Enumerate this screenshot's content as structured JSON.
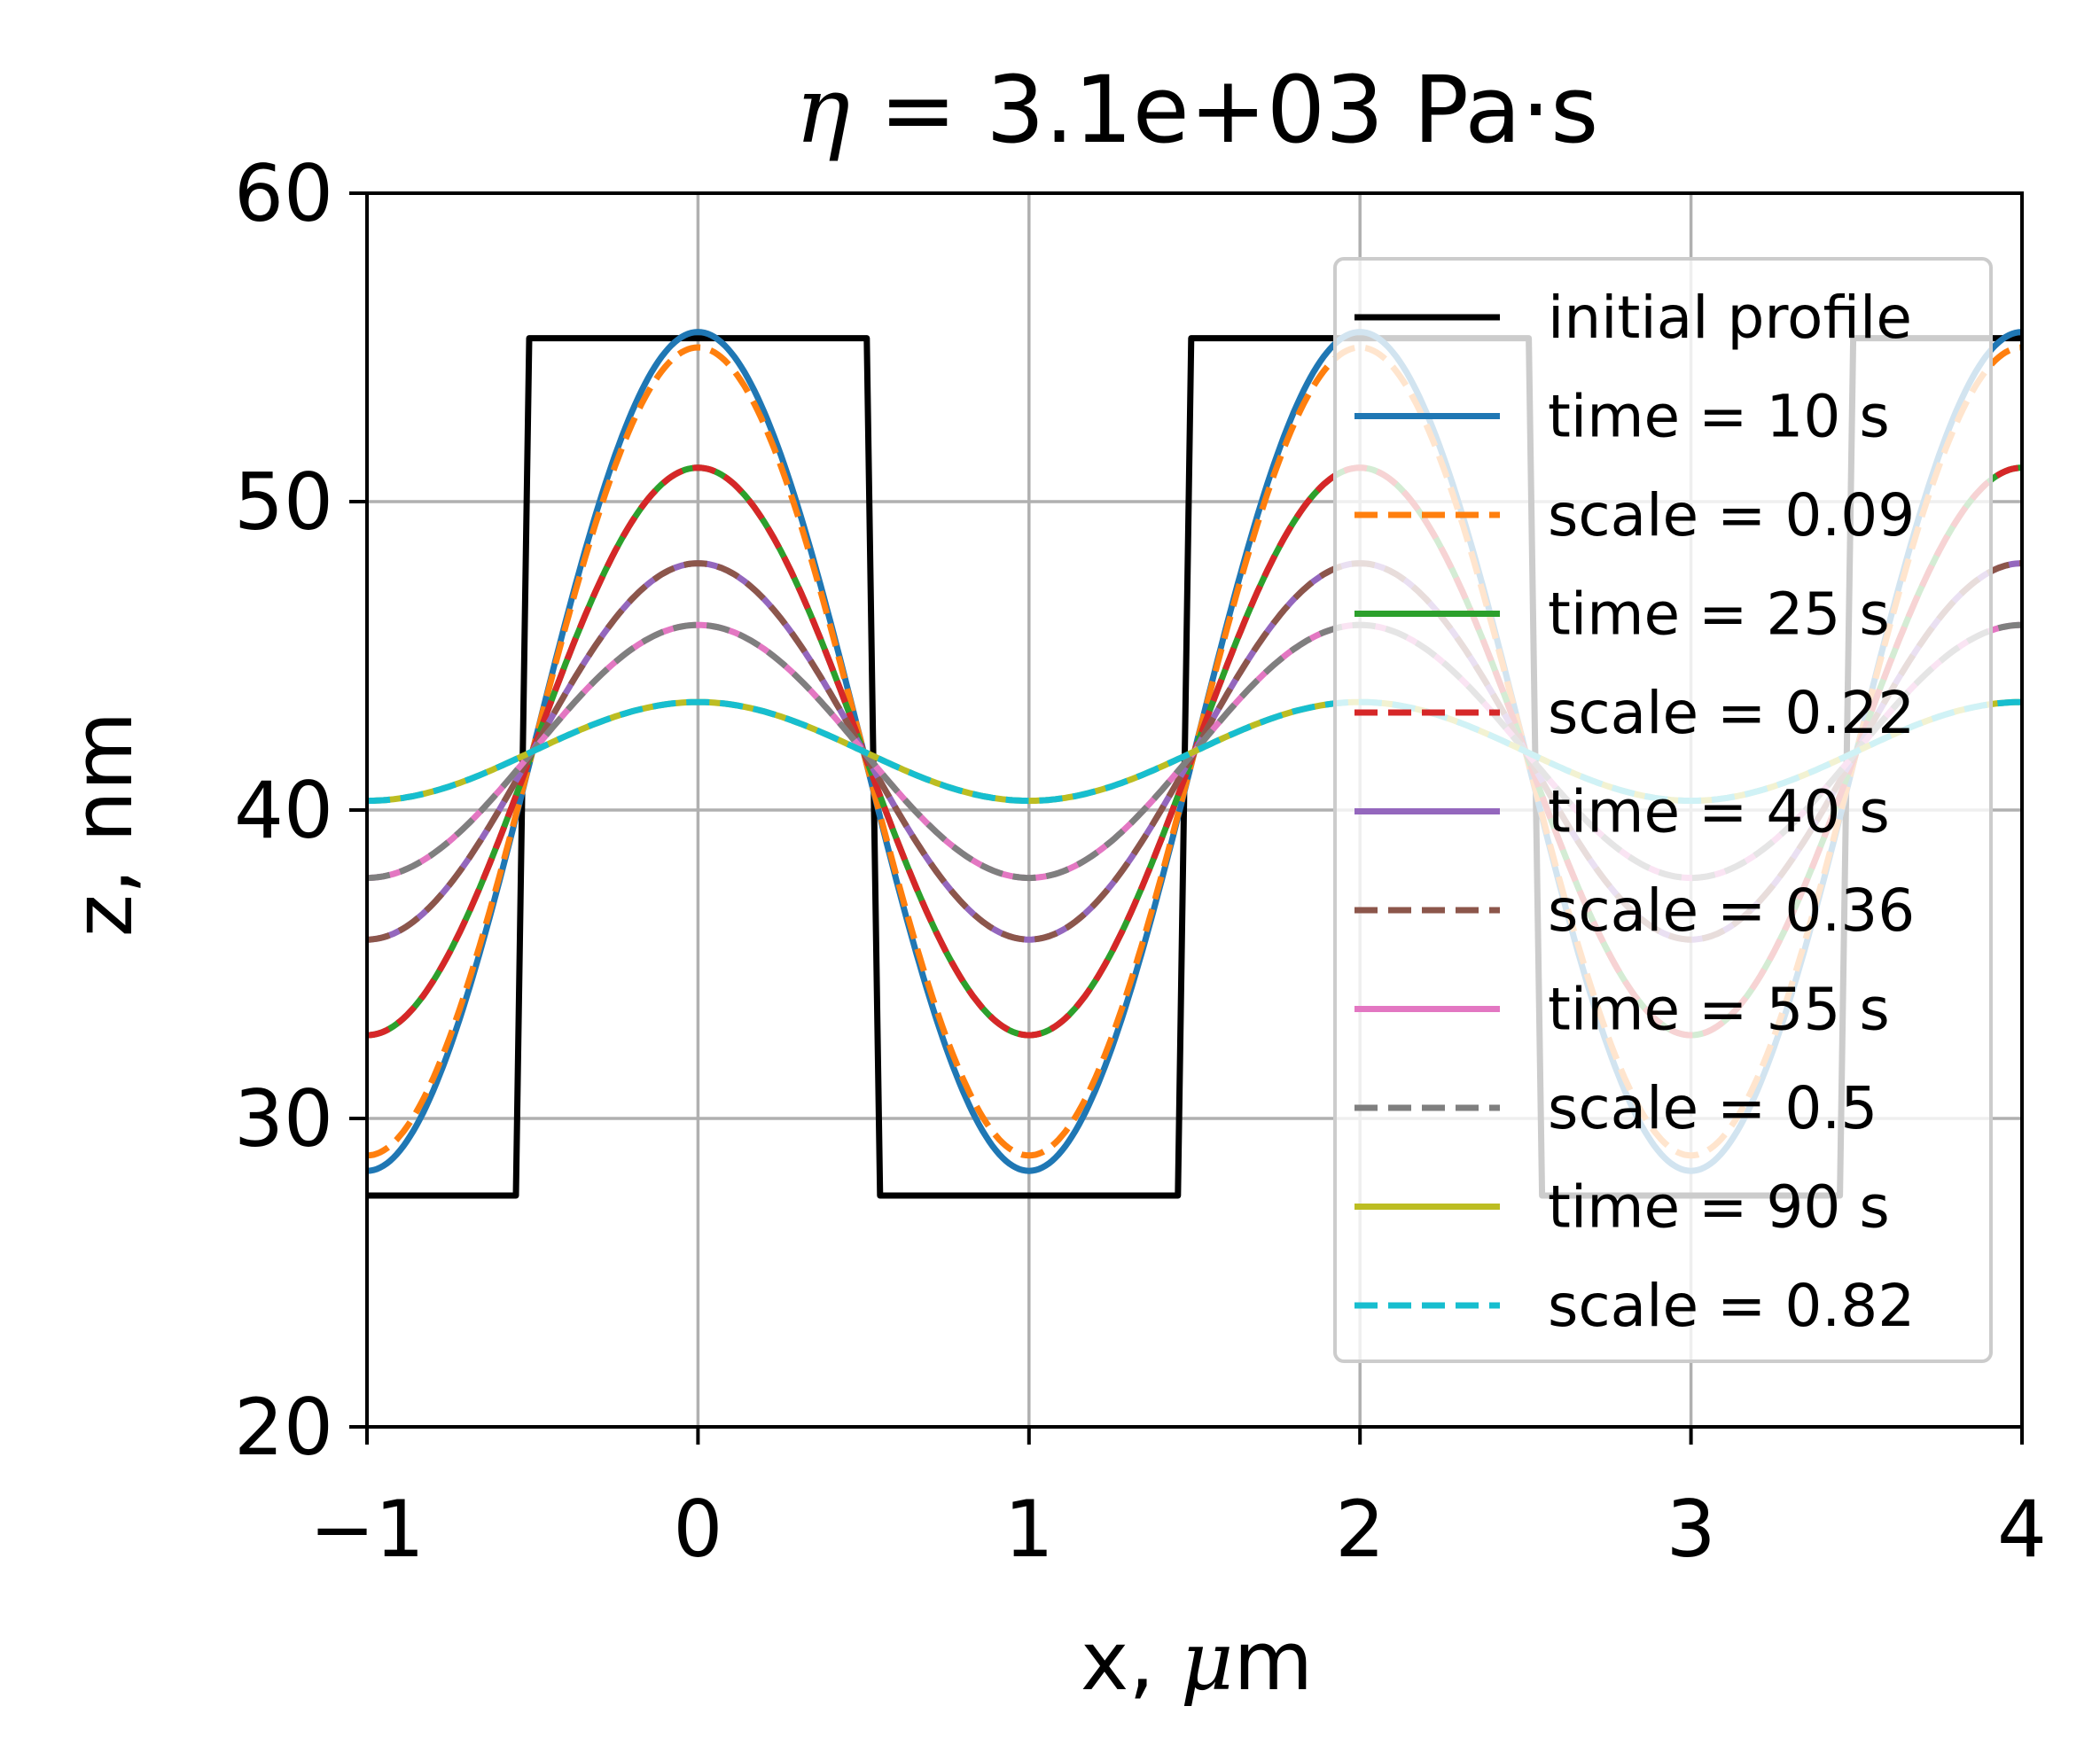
{
  "chart_data": {
    "type": "line",
    "title": {
      "symbol": "η",
      "text": " = 3.1e+03 Pa·s"
    },
    "xlabel": {
      "prefix": "x, ",
      "symbol": "μ",
      "suffix": "m"
    },
    "ylabel": "z, nm",
    "xlim": [
      -1,
      4
    ],
    "ylim": [
      20,
      60
    ],
    "xticks": [
      -1,
      0,
      1,
      2,
      3,
      4
    ],
    "xtick_labels": [
      "−1",
      "0",
      "1",
      "2",
      "3",
      "4"
    ],
    "yticks": [
      20,
      30,
      40,
      50,
      60
    ],
    "ytick_labels": [
      "20",
      "30",
      "40",
      "50",
      "60"
    ],
    "grid": true,
    "legend_position": "upper-right",
    "period": 2,
    "mean": 41.9,
    "initial_profile": {
      "name": "initial profile",
      "high": 55.3,
      "low": 27.5,
      "edges": [
        -0.53,
        0.53,
        1.47,
        2.53,
        3.47
      ],
      "color": "#000000"
    },
    "series": [
      {
        "name": "time = 10 s",
        "amplitude": 13.6,
        "style": "solid",
        "color": "#1f77b4"
      },
      {
        "name": "scale = 0.09",
        "amplitude": 13.1,
        "style": "dashed",
        "color": "#ff7f0e"
      },
      {
        "name": "time = 25 s",
        "amplitude": 9.2,
        "style": "solid",
        "color": "#2ca02c"
      },
      {
        "name": "scale = 0.22",
        "amplitude": 9.2,
        "style": "dashed",
        "color": "#d62728"
      },
      {
        "name": "time = 40 s",
        "amplitude": 6.1,
        "style": "solid",
        "color": "#9467bd"
      },
      {
        "name": "scale = 0.36",
        "amplitude": 6.1,
        "style": "dashed",
        "color": "#8c564b"
      },
      {
        "name": "time = 55 s",
        "amplitude": 4.1,
        "style": "solid",
        "color": "#e377c2"
      },
      {
        "name": "scale = 0.5",
        "amplitude": 4.1,
        "style": "dashed",
        "color": "#7f7f7f"
      },
      {
        "name": "time = 90 s",
        "amplitude": 1.6,
        "style": "solid",
        "color": "#bcbd22"
      },
      {
        "name": "scale = 0.82",
        "amplitude": 1.6,
        "style": "dashed",
        "color": "#17becf"
      }
    ]
  }
}
